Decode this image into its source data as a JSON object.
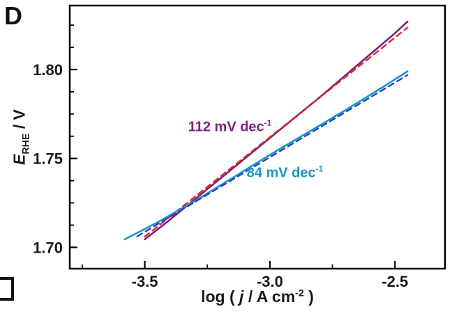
{
  "panel_label": "D",
  "labels": {
    "ylabel": {
      "e": "E",
      "sub": "RHE",
      "rest": " / V"
    },
    "xlabel": {
      "pre": "log ( ",
      "j": "j",
      "mid": " / A cm",
      "sup": "-2",
      "post": " )"
    }
  },
  "colors": {
    "tafel_purple": "#7B1F7E",
    "fit_red": "#D62B2B",
    "tafel_cyan": "#1798C4",
    "fit_blue": "#2B3FC0",
    "axis": "#000000"
  },
  "chart_data": {
    "type": "line",
    "title": "",
    "xlabel": "log ( j / A cm^-2 )",
    "ylabel": "E_RHE / V",
    "xlim": [
      -3.8,
      -2.3
    ],
    "ylim": [
      1.688,
      1.836
    ],
    "grid": false,
    "legend": "none",
    "xticks": [
      -3.5,
      -3.0,
      -2.5
    ],
    "xtick_labels": [
      "-3.5",
      "-3.0",
      "-2.5"
    ],
    "xticks_minor": [
      -3.75,
      -3.25,
      -2.75
    ],
    "yticks": [
      1.7,
      1.75,
      1.8
    ],
    "ytick_labels": [
      "1.70",
      "1.75",
      "1.80"
    ],
    "yticks_minor": [
      1.7125,
      1.725,
      1.7375,
      1.7625,
      1.775,
      1.7875,
      1.8125,
      1.825
    ],
    "series": [
      {
        "name": "tafel-data-112mV",
        "color": "#7B1F7E",
        "style": "solid",
        "width": 2.6,
        "points": [
          [
            -3.5,
            1.7045
          ],
          [
            -3.4,
            1.7155
          ],
          [
            -3.3,
            1.727
          ],
          [
            -3.2,
            1.7385
          ],
          [
            -3.1,
            1.75
          ],
          [
            -3.0,
            1.7615
          ],
          [
            -2.9,
            1.773
          ],
          [
            -2.8,
            1.7845
          ],
          [
            -2.7,
            1.7965
          ],
          [
            -2.6,
            1.8085
          ],
          [
            -2.5,
            1.8205
          ],
          [
            -2.45,
            1.827
          ]
        ]
      },
      {
        "name": "linear-fit-112mV",
        "color": "#D62B2B",
        "style": "dashed",
        "width": 2.4,
        "points": [
          [
            -3.5,
            1.706
          ],
          [
            -2.45,
            1.8236
          ]
        ]
      },
      {
        "name": "tafel-data-84mV",
        "color": "#1798C4",
        "style": "solid",
        "width": 2.6,
        "points": [
          [
            -3.58,
            1.7045
          ],
          [
            -3.45,
            1.714
          ],
          [
            -3.3,
            1.726
          ],
          [
            -3.15,
            1.739
          ],
          [
            -3.0,
            1.752
          ],
          [
            -2.85,
            1.7645
          ],
          [
            -2.7,
            1.777
          ],
          [
            -2.55,
            1.79
          ],
          [
            -2.45,
            1.799
          ]
        ]
      },
      {
        "name": "linear-fit-84mV",
        "color": "#2B3FC0",
        "style": "dashed",
        "width": 2.4,
        "points": [
          [
            -3.53,
            1.7062
          ],
          [
            -2.45,
            1.7969
          ]
        ]
      }
    ],
    "annotations": [
      {
        "main": "112 mV dec",
        "sup": "-1",
        "x": -3.16,
        "y": 1.768,
        "color": "#7B1F7E"
      },
      {
        "main": "84 mV dec",
        "sup": "-1",
        "x": -2.94,
        "y": 1.742,
        "color": "#1798C4"
      }
    ]
  }
}
